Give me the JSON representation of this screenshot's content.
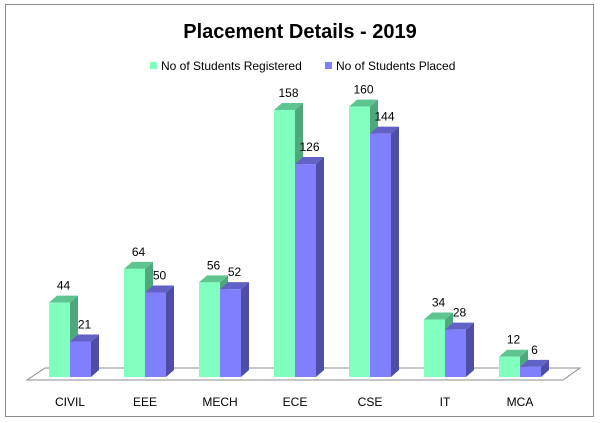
{
  "chart_data": {
    "type": "bar",
    "title": "Placement Details - 2019",
    "categories": [
      "CIVIL",
      "EEE",
      "MECH",
      "ECE",
      "CSE",
      "IT",
      "MCA"
    ],
    "series": [
      {
        "name": "No of Students Registered",
        "values": [
          44,
          64,
          56,
          158,
          160,
          34,
          12
        ],
        "color": "#80FFBF",
        "side": "#4FA87C",
        "top": "#5EC590"
      },
      {
        "name": "No of Students Placed",
        "values": [
          21,
          50,
          52,
          126,
          144,
          28,
          6
        ],
        "color": "#8080FF",
        "side": "#4E4EA6",
        "top": "#6262C6"
      }
    ],
    "xlabel": "",
    "ylabel": "",
    "ylim": [
      0,
      170
    ],
    "grid": false,
    "legend": "top",
    "data_labels": true
  }
}
